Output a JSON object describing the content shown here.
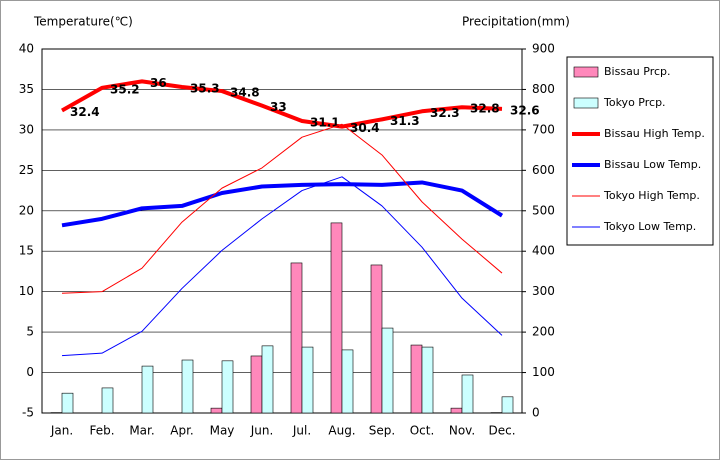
{
  "chart_data": {
    "type": "combo",
    "y_label": "Temperature(℃)",
    "y2_label": "Precipitation(mm)",
    "categories": [
      "Jan.",
      "Feb.",
      "Mar.",
      "Apr.",
      "May",
      "Jun.",
      "Jul.",
      "Aug.",
      "Sep.",
      "Oct.",
      "Nov.",
      "Dec."
    ],
    "ylim": [
      -5,
      40
    ],
    "yticks": [
      -5,
      0,
      5,
      10,
      15,
      20,
      25,
      30,
      35,
      40
    ],
    "y2lim": [
      0,
      900
    ],
    "y2ticks": [
      0,
      100,
      200,
      300,
      400,
      500,
      600,
      700,
      800,
      900
    ],
    "grid": true,
    "legend": "right",
    "series": [
      {
        "name": "Bissau Prcp.",
        "type": "bar",
        "axis": "y2",
        "color": "#ff88bb",
        "values": [
          1,
          0,
          0,
          0,
          12,
          141,
          371,
          470,
          366,
          168,
          12,
          1
        ]
      },
      {
        "name": "Tokyo Prcp.",
        "type": "bar",
        "axis": "y2",
        "color": "#ccffff",
        "values": [
          49,
          62,
          116,
          131,
          129,
          166,
          163,
          156,
          210,
          163,
          94,
          40
        ]
      },
      {
        "name": "Bissau High Temp.",
        "type": "line",
        "color": "#ff0000",
        "labels": true,
        "values": [
          32.4,
          35.2,
          36,
          35.3,
          34.8,
          33,
          31.1,
          30.4,
          31.3,
          32.3,
          32.8,
          32.6
        ]
      },
      {
        "name": "Bissau Low Temp.",
        "type": "line",
        "color": "#0000ff",
        "values": [
          18.2,
          19.0,
          20.3,
          20.6,
          22.2,
          23.0,
          23.2,
          23.3,
          23.2,
          23.5,
          22.5,
          19.4
        ]
      },
      {
        "name": "Tokyo High Temp.",
        "type": "line",
        "color": "#ff0000",
        "values": [
          9.8,
          10.0,
          12.9,
          18.6,
          22.8,
          25.3,
          29.1,
          30.7,
          26.9,
          21.1,
          16.5,
          12.3
        ]
      },
      {
        "name": "Tokyo Low Temp.",
        "type": "line",
        "color": "#0000ff",
        "values": [
          2.1,
          2.4,
          5.1,
          10.4,
          15.1,
          19.0,
          22.5,
          24.2,
          20.6,
          15.5,
          9.2,
          4.6
        ]
      }
    ]
  }
}
